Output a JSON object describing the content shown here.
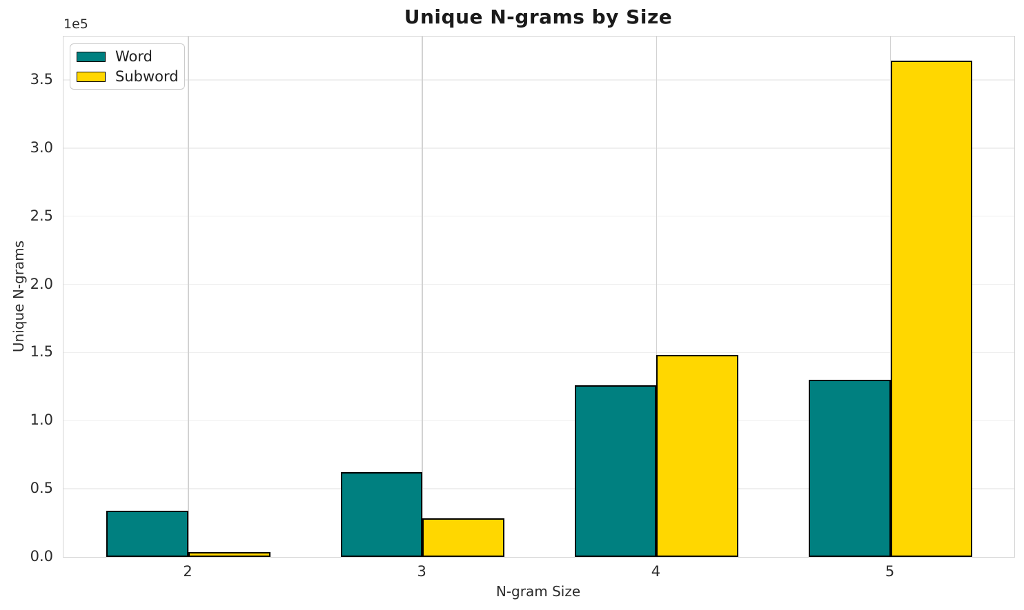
{
  "chart_data": {
    "type": "bar",
    "title": "Unique N-grams by Size",
    "xlabel": "N-gram Size",
    "ylabel": "Unique N-grams",
    "offset_label": "1e5",
    "categories": [
      "2",
      "3",
      "4",
      "5"
    ],
    "series": [
      {
        "name": "Word",
        "color": "#008080",
        "values": [
          34000,
          62000,
          126000,
          130000
        ]
      },
      {
        "name": "Subword",
        "color": "#ffd700",
        "values": [
          3500,
          28500,
          148000,
          364000
        ]
      }
    ],
    "ylim": [
      0,
      381800
    ],
    "yticks": [
      0,
      50000,
      100000,
      150000,
      200000,
      250000,
      300000,
      350000
    ],
    "ytick_labels": [
      "0.0",
      "0.5",
      "1.0",
      "1.5",
      "2.0",
      "2.5",
      "3.0",
      "3.5"
    ],
    "grid": true,
    "legend_position": "upper left",
    "bar_edge_color": "#000000",
    "hgrid_color": "#efefef",
    "vgrid_color": "#d2d2d2"
  }
}
